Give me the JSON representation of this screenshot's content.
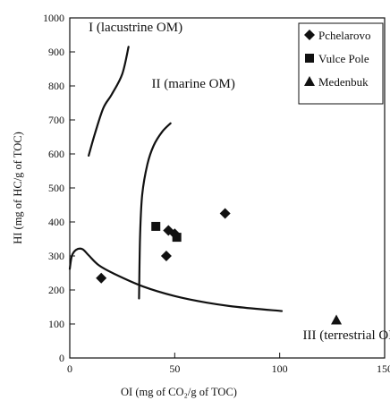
{
  "chart_data": {
    "type": "scatter",
    "title": "",
    "xlabel": "OI (mg of CO₂/g of TOC)",
    "ylabel": "HI (mg of HC/g of TOC)",
    "xlim": [
      0,
      150
    ],
    "ylim": [
      0,
      1000
    ],
    "x_ticks": [
      "0",
      "50",
      "100",
      "150"
    ],
    "y_ticks": [
      "0",
      "100",
      "200",
      "300",
      "400",
      "500",
      "600",
      "700",
      "800",
      "900",
      "1000"
    ],
    "legend_position": "top-right",
    "series": [
      {
        "name": "Pchelarovo",
        "marker": "diamond",
        "points": [
          [
            15,
            235
          ],
          [
            46,
            300
          ],
          [
            47,
            375
          ],
          [
            50,
            365
          ],
          [
            74,
            425
          ]
        ]
      },
      {
        "name": "Vulce Pole",
        "marker": "square",
        "points": [
          [
            41,
            387
          ],
          [
            51,
            355
          ]
        ]
      },
      {
        "name": "Medenbuk",
        "marker": "triangle",
        "points": [
          [
            127,
            112
          ]
        ]
      }
    ],
    "curves": [
      {
        "name": "type-I",
        "points": [
          [
            9,
            595
          ],
          [
            12,
            660
          ],
          [
            16,
            735
          ],
          [
            20,
            775
          ],
          [
            25,
            835
          ],
          [
            28,
            915
          ]
        ]
      },
      {
        "name": "type-II",
        "points": [
          [
            33,
            175
          ],
          [
            33.5,
            360
          ],
          [
            34.5,
            480
          ],
          [
            37,
            570
          ],
          [
            40,
            625
          ],
          [
            44,
            665
          ],
          [
            48,
            690
          ]
        ]
      },
      {
        "name": "type-III",
        "points": [
          [
            0,
            262
          ],
          [
            1,
            300
          ],
          [
            3,
            318
          ],
          [
            6,
            320
          ],
          [
            9,
            302
          ],
          [
            14,
            272
          ],
          [
            22,
            245
          ],
          [
            35,
            210
          ],
          [
            50,
            182
          ],
          [
            65,
            163
          ],
          [
            80,
            150
          ],
          [
            101,
            138
          ]
        ]
      }
    ],
    "annotations": [
      {
        "text": "I (lacustrine OM)",
        "x": 9,
        "y": 960
      },
      {
        "text": "II (marine OM)",
        "x": 39,
        "y": 795
      },
      {
        "text": "III (terrestrial OM)",
        "x": 111,
        "y": 55
      }
    ]
  }
}
